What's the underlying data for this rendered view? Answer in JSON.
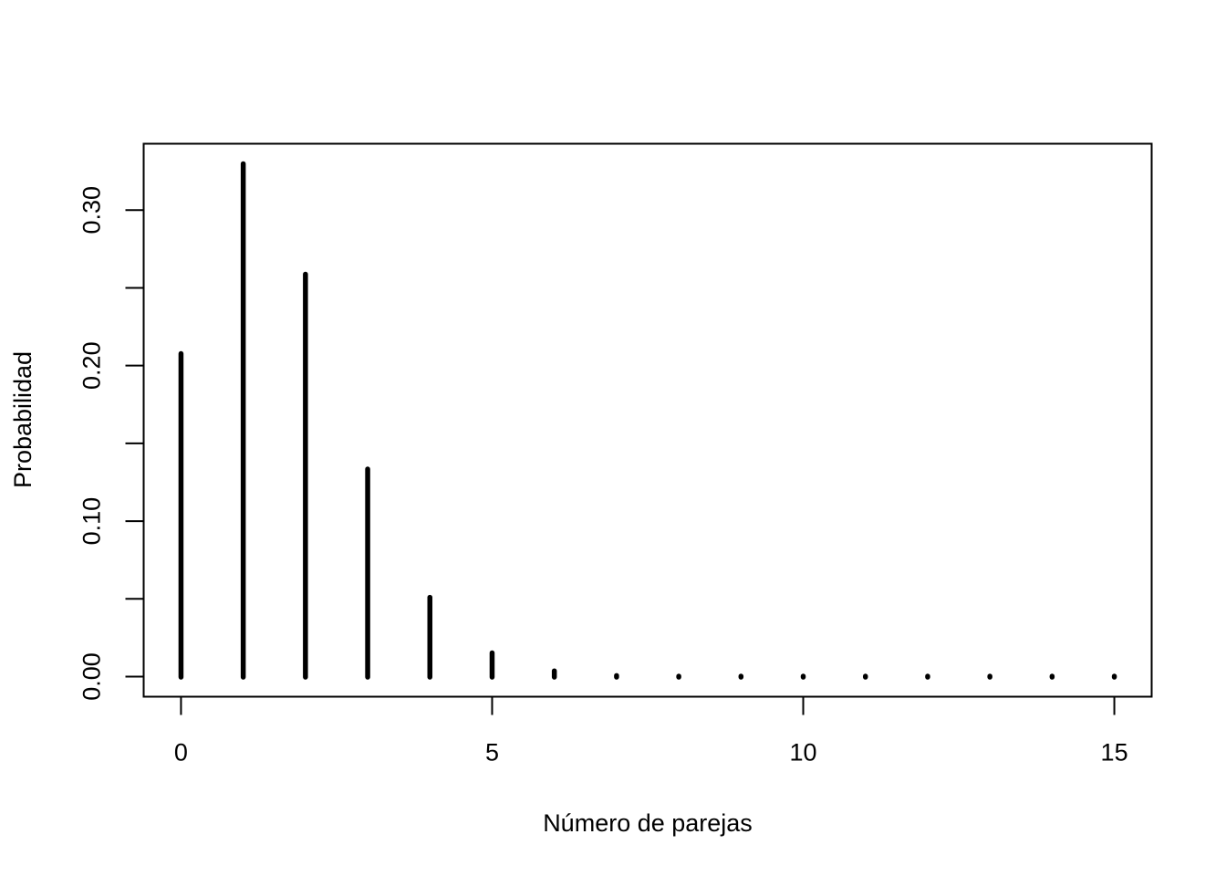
{
  "chart_data": {
    "type": "bar",
    "title": "",
    "xlabel": "Número de parejas",
    "ylabel": "Probabilidad",
    "x": [
      0,
      1,
      2,
      3,
      4,
      5,
      6,
      7,
      8,
      9,
      10,
      11,
      12,
      13,
      14,
      15
    ],
    "values": [
      0.2077,
      0.3298,
      0.2588,
      0.1335,
      0.051,
      0.0153,
      0.0037,
      0.0007,
      0.0001,
      0.0,
      0.0,
      0.0,
      0.0,
      0.0,
      0.0,
      0.0
    ],
    "xlim": [
      -0.6,
      15.6
    ],
    "ylim": [
      -0.0129,
      0.3427
    ],
    "xticks": [
      0,
      5,
      10,
      15
    ],
    "xtick_labels": [
      "0",
      "5",
      "10",
      "15"
    ],
    "yticks": [
      0.0,
      0.05,
      0.1,
      0.15,
      0.2,
      0.25,
      0.3
    ],
    "ytick_labels": [
      "0.00",
      "",
      "0.10",
      "",
      "0.20",
      "",
      "0.30"
    ],
    "grid": false,
    "legend": "none",
    "colors": {
      "line": "#000000",
      "background": "#ffffff"
    }
  }
}
